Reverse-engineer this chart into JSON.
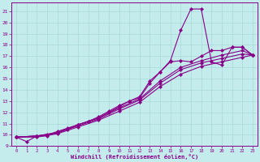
{
  "xlabel": "Windchill (Refroidissement éolien,°C)",
  "background_color": "#c5eced",
  "grid_color": "#a8d8d8",
  "line_color": "#880088",
  "xlim": [
    -0.5,
    23.5
  ],
  "ylim": [
    9.0,
    21.8
  ],
  "xticks": [
    0,
    1,
    2,
    3,
    4,
    5,
    6,
    7,
    8,
    9,
    10,
    11,
    12,
    13,
    14,
    15,
    16,
    17,
    18,
    19,
    20,
    21,
    22,
    23
  ],
  "yticks": [
    9,
    10,
    11,
    12,
    13,
    14,
    15,
    16,
    17,
    18,
    19,
    20,
    21
  ],
  "series": [
    {
      "x": [
        0,
        1,
        2,
        3,
        4,
        5,
        6,
        7,
        8,
        9,
        10,
        11,
        12,
        13,
        14,
        15,
        16,
        17,
        18,
        19,
        20,
        21,
        22,
        23
      ],
      "y": [
        9.8,
        9.4,
        9.9,
        9.9,
        10.2,
        10.5,
        10.9,
        11.2,
        11.5,
        12.0,
        12.5,
        13.0,
        13.3,
        14.6,
        15.6,
        16.6,
        19.3,
        21.2,
        21.2,
        16.5,
        16.2,
        17.8,
        17.8,
        17.1
      ]
    },
    {
      "x": [
        0,
        2,
        3,
        4,
        5,
        6,
        7,
        8,
        9,
        10,
        11,
        12,
        13,
        14,
        15,
        16,
        17,
        18,
        19,
        20,
        21,
        22,
        23
      ],
      "y": [
        9.8,
        9.9,
        10.0,
        10.3,
        10.6,
        10.9,
        11.2,
        11.6,
        12.1,
        12.6,
        13.0,
        13.4,
        14.8,
        15.6,
        16.5,
        16.6,
        16.5,
        17.0,
        17.5,
        17.5,
        17.8,
        17.8,
        17.1
      ]
    },
    {
      "x": [
        0,
        2,
        4,
        6,
        8,
        10,
        12,
        14,
        16,
        18,
        20,
        22,
        23
      ],
      "y": [
        9.8,
        9.9,
        10.2,
        10.9,
        11.5,
        12.4,
        13.2,
        14.8,
        16.0,
        16.6,
        17.1,
        17.5,
        17.1
      ]
    },
    {
      "x": [
        0,
        2,
        4,
        6,
        8,
        10,
        12,
        14,
        16,
        18,
        20,
        22,
        23
      ],
      "y": [
        9.8,
        9.9,
        10.2,
        10.8,
        11.4,
        12.3,
        13.1,
        14.6,
        15.8,
        16.4,
        16.8,
        17.2,
        17.1
      ]
    },
    {
      "x": [
        0,
        2,
        4,
        6,
        8,
        10,
        12,
        14,
        16,
        18,
        20,
        22,
        23
      ],
      "y": [
        9.8,
        9.8,
        10.1,
        10.7,
        11.3,
        12.1,
        12.9,
        14.3,
        15.4,
        16.1,
        16.5,
        16.9,
        17.1
      ]
    }
  ]
}
